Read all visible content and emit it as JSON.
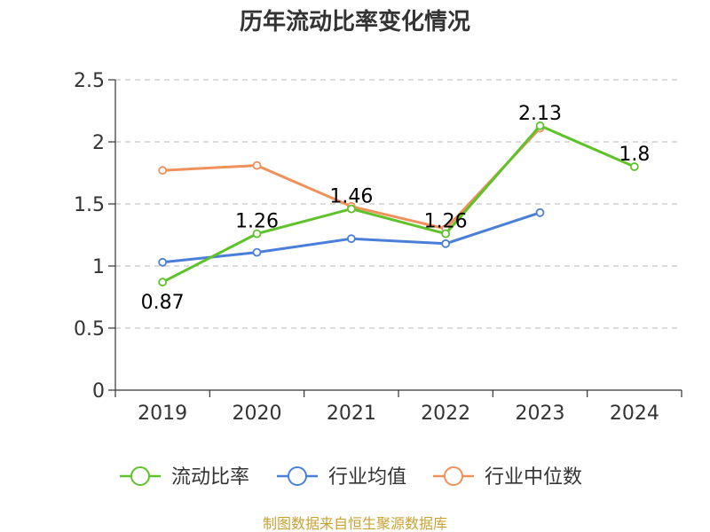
{
  "chart_data": {
    "type": "line",
    "title": "历年流动比率变化情况",
    "categories": [
      "2019",
      "2020",
      "2021",
      "2022",
      "2023",
      "2024"
    ],
    "yticks": [
      "0",
      "0.5",
      "1",
      "1.5",
      "2",
      "2.5"
    ],
    "ylim": [
      0,
      2.5
    ],
    "grid": true,
    "legend_position": "bottom",
    "series": [
      {
        "name": "流动比率",
        "color": "#5ec22b",
        "values": [
          0.87,
          1.26,
          1.46,
          1.26,
          2.13,
          1.8
        ],
        "labels": [
          "0.87",
          "1.26",
          "1.46",
          "1.26",
          "2.13",
          "1.8"
        ]
      },
      {
        "name": "行业均值",
        "color": "#4a7fd9",
        "values": [
          1.03,
          1.11,
          1.22,
          1.18,
          1.43,
          null
        ]
      },
      {
        "name": "行业中位数",
        "color": "#f0905a",
        "values": [
          1.77,
          1.81,
          1.48,
          1.3,
          2.11,
          null
        ]
      }
    ]
  },
  "source": "制图数据来自恒生聚源数据库"
}
